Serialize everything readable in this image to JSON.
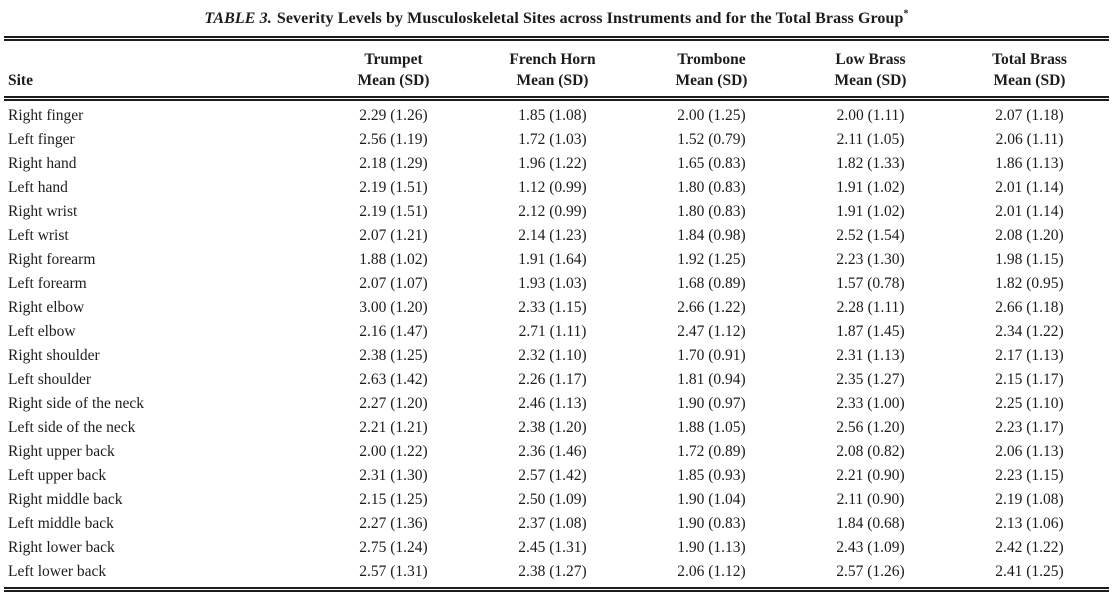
{
  "table": {
    "title_label": "TABLE 3.",
    "title_text": "Severity Levels by Musculoskeletal Sites across Instruments and for the Total Brass Group",
    "footnote_marker": "*",
    "site_header": "Site",
    "columns": [
      {
        "name": "Trumpet",
        "sub": "Mean (SD)"
      },
      {
        "name": "French Horn",
        "sub": "Mean (SD)"
      },
      {
        "name": "Trombone",
        "sub": "Mean (SD)"
      },
      {
        "name": "Low Brass",
        "sub": "Mean (SD)"
      },
      {
        "name": "Total Brass",
        "sub": "Mean (SD)"
      }
    ],
    "rows": [
      {
        "site": "Right finger",
        "values": [
          "2.29 (1.26)",
          "1.85 (1.08)",
          "2.00 (1.25)",
          "2.00 (1.11)",
          "2.07 (1.18)"
        ]
      },
      {
        "site": "Left finger",
        "values": [
          "2.56 (1.19)",
          "1.72 (1.03)",
          "1.52 (0.79)",
          "2.11 (1.05)",
          "2.06 (1.11)"
        ]
      },
      {
        "site": "Right hand",
        "values": [
          "2.18 (1.29)",
          "1.96 (1.22)",
          "1.65 (0.83)",
          "1.82 (1.33)",
          "1.86 (1.13)"
        ]
      },
      {
        "site": "Left hand",
        "values": [
          "2.19 (1.51)",
          "1.12 (0.99)",
          "1.80 (0.83)",
          "1.91 (1.02)",
          "2.01 (1.14)"
        ]
      },
      {
        "site": "Right wrist",
        "values": [
          "2.19 (1.51)",
          "2.12 (0.99)",
          "1.80 (0.83)",
          "1.91 (1.02)",
          "2.01 (1.14)"
        ]
      },
      {
        "site": "Left wrist",
        "values": [
          "2.07 (1.21)",
          "2.14 (1.23)",
          "1.84 (0.98)",
          "2.52 (1.54)",
          "2.08 (1.20)"
        ]
      },
      {
        "site": "Right forearm",
        "values": [
          "1.88 (1.02)",
          "1.91 (1.64)",
          "1.92 (1.25)",
          "2.23 (1.30)",
          "1.98 (1.15)"
        ]
      },
      {
        "site": "Left forearm",
        "values": [
          "2.07 (1.07)",
          "1.93 (1.03)",
          "1.68 (0.89)",
          "1.57 (0.78)",
          "1.82 (0.95)"
        ]
      },
      {
        "site": "Right elbow",
        "values": [
          "3.00 (1.20)",
          "2.33 (1.15)",
          "2.66 (1.22)",
          "2.28 (1.11)",
          "2.66 (1.18)"
        ]
      },
      {
        "site": "Left elbow",
        "values": [
          "2.16 (1.47)",
          "2.71 (1.11)",
          "2.47 (1.12)",
          "1.87 (1.45)",
          "2.34 (1.22)"
        ]
      },
      {
        "site": "Right shoulder",
        "values": [
          "2.38 (1.25)",
          "2.32 (1.10)",
          "1.70 (0.91)",
          "2.31 (1.13)",
          "2.17 (1.13)"
        ]
      },
      {
        "site": "Left shoulder",
        "values": [
          "2.63 (1.42)",
          "2.26 (1.17)",
          "1.81 (0.94)",
          "2.35 (1.27)",
          "2.15 (1.17)"
        ]
      },
      {
        "site": "Right side of the neck",
        "values": [
          "2.27 (1.20)",
          "2.46 (1.13)",
          "1.90 (0.97)",
          "2.33 (1.00)",
          "2.25 (1.10)"
        ]
      },
      {
        "site": "Left side of the neck",
        "values": [
          "2.21 (1.21)",
          "2.38 (1.20)",
          "1.88 (1.05)",
          "2.56 (1.20)",
          "2.23 (1.17)"
        ]
      },
      {
        "site": "Right upper back",
        "values": [
          "2.00 (1.22)",
          "2.36 (1.46)",
          "1.72 (0.89)",
          "2.08 (0.82)",
          "2.06 (1.13)"
        ]
      },
      {
        "site": "Left upper back",
        "values": [
          "2.31 (1.30)",
          "2.57 (1.42)",
          "1.85 (0.93)",
          "2.21 (0.90)",
          "2.23 (1.15)"
        ]
      },
      {
        "site": "Right middle back",
        "values": [
          "2.15 (1.25)",
          "2.50 (1.09)",
          "1.90 (1.04)",
          "2.11 (0.90)",
          "2.19 (1.08)"
        ]
      },
      {
        "site": "Left middle back",
        "values": [
          "2.27 (1.36)",
          "2.37 (1.08)",
          "1.90 (0.83)",
          "1.84 (0.68)",
          "2.13 (1.06)"
        ]
      },
      {
        "site": "Right lower back",
        "values": [
          "2.75 (1.24)",
          "2.45 (1.31)",
          "1.90 (1.13)",
          "2.43 (1.09)",
          "2.42 (1.22)"
        ]
      },
      {
        "site": "Left lower back",
        "values": [
          "2.57 (1.31)",
          "2.38 (1.27)",
          "2.06 (1.12)",
          "2.57 (1.26)",
          "2.41 (1.25)"
        ]
      }
    ]
  },
  "ink_color": "#1c1c1c",
  "background_color": "#ffffff"
}
